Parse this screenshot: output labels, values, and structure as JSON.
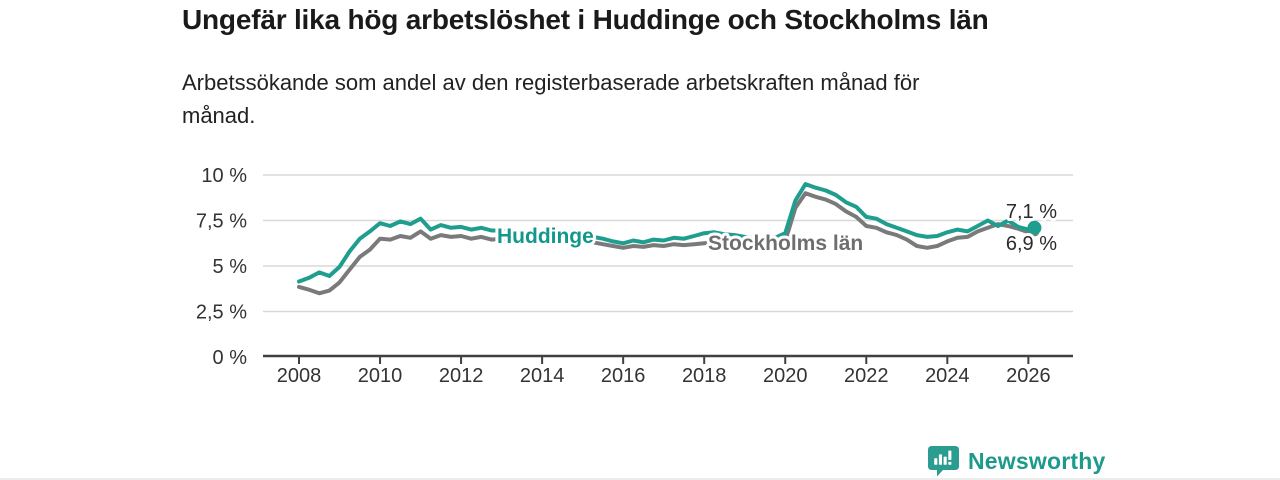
{
  "header": {
    "title": "Ungefär lika hög arbetslöshet i Huddinge och Stockholms län",
    "subtitle": "Arbetssökande som andel av den registerbaserade arbetskraften månad för månad."
  },
  "chart_data": {
    "type": "line",
    "unit": "%",
    "x_unit": "decimal_year",
    "xlim": [
      2008,
      2026.4
    ],
    "ylim": [
      0,
      10
    ],
    "grid": "horizontal",
    "legend": "inline-labels-on-lines",
    "yticks": [
      {
        "value": 0,
        "label": "0 %"
      },
      {
        "value": 2.5,
        "label": "2,5 %"
      },
      {
        "value": 5,
        "label": "5 %"
      },
      {
        "value": 7.5,
        "label": "7,5 %"
      },
      {
        "value": 10,
        "label": "10 %"
      }
    ],
    "xticks": [
      {
        "value": 2008,
        "label": "2008"
      },
      {
        "value": 2010,
        "label": "2010"
      },
      {
        "value": 2012,
        "label": "2012"
      },
      {
        "value": 2014,
        "label": "2014"
      },
      {
        "value": 2016,
        "label": "2016"
      },
      {
        "value": 2018,
        "label": "2018"
      },
      {
        "value": 2020,
        "label": "2020"
      },
      {
        "value": 2022,
        "label": "2022"
      },
      {
        "value": 2024,
        "label": "2024"
      },
      {
        "value": 2026,
        "label": "2026"
      }
    ],
    "x": [
      2008,
      2008.25,
      2008.5,
      2008.75,
      2009,
      2009.25,
      2009.5,
      2009.75,
      2010,
      2010.25,
      2010.5,
      2010.75,
      2011,
      2011.25,
      2011.5,
      2011.75,
      2012,
      2012.25,
      2012.5,
      2012.75,
      2013,
      2013.25,
      2013.5,
      2013.75,
      2014,
      2014.25,
      2014.5,
      2014.75,
      2015,
      2015.25,
      2015.5,
      2015.75,
      2016,
      2016.25,
      2016.5,
      2016.75,
      2017,
      2017.25,
      2017.5,
      2017.75,
      2018,
      2018.25,
      2018.5,
      2018.75,
      2019,
      2019.25,
      2019.5,
      2019.75,
      2020,
      2020.25,
      2020.5,
      2020.75,
      2021,
      2021.25,
      2021.5,
      2021.75,
      2022,
      2022.25,
      2022.5,
      2022.75,
      2023,
      2023.25,
      2023.5,
      2023.75,
      2024,
      2024.25,
      2024.5,
      2024.75,
      2025,
      2025.25,
      2025.5,
      2025.75,
      2026,
      2026.15
    ],
    "series": [
      {
        "name": "Huddinge",
        "color": "#1f9e8f",
        "label_color": "#12988a",
        "end_label": "7,1 %",
        "end_value": 7.1,
        "values": [
          4.15,
          4.35,
          4.65,
          4.45,
          4.95,
          5.8,
          6.5,
          6.9,
          7.35,
          7.2,
          7.45,
          7.3,
          7.6,
          7.0,
          7.25,
          7.1,
          7.15,
          7.0,
          7.1,
          6.95,
          6.95,
          6.85,
          6.9,
          6.8,
          6.75,
          6.8,
          6.7,
          6.65,
          6.7,
          6.6,
          6.5,
          6.35,
          6.25,
          6.4,
          6.3,
          6.45,
          6.4,
          6.55,
          6.5,
          6.65,
          6.8,
          6.85,
          6.75,
          6.7,
          6.6,
          6.5,
          6.45,
          6.55,
          6.8,
          8.6,
          9.5,
          9.3,
          9.15,
          8.9,
          8.5,
          8.25,
          7.7,
          7.6,
          7.3,
          7.1,
          6.9,
          6.7,
          6.6,
          6.65,
          6.85,
          7.0,
          6.9,
          7.2,
          7.5,
          7.2,
          7.5,
          7.15,
          7.0,
          7.1
        ]
      },
      {
        "name": "Stockholms län",
        "color": "#7a7a7a",
        "label_color": "#6e6e6e",
        "end_label": "6,9 %",
        "end_value": 6.9,
        "values": [
          3.85,
          3.7,
          3.5,
          3.65,
          4.1,
          4.8,
          5.5,
          5.9,
          6.5,
          6.45,
          6.65,
          6.55,
          6.9,
          6.5,
          6.7,
          6.6,
          6.65,
          6.5,
          6.6,
          6.45,
          6.5,
          6.4,
          6.45,
          6.35,
          6.3,
          6.35,
          6.3,
          6.25,
          6.35,
          6.3,
          6.2,
          6.1,
          6.0,
          6.1,
          6.05,
          6.15,
          6.1,
          6.2,
          6.15,
          6.2,
          6.25,
          6.3,
          6.2,
          6.15,
          6.1,
          6.05,
          6.0,
          6.1,
          6.35,
          8.2,
          9.0,
          8.8,
          8.65,
          8.4,
          8.0,
          7.7,
          7.2,
          7.1,
          6.85,
          6.7,
          6.45,
          6.1,
          6.0,
          6.1,
          6.35,
          6.55,
          6.6,
          6.9,
          7.1,
          7.3,
          7.2,
          7.05,
          6.85,
          6.9
        ]
      }
    ]
  },
  "footer": {
    "brand": "Newsworthy"
  },
  "colors": {
    "accent_teal": "#1f9e8f",
    "line_gray": "#7a7a7a",
    "title_text": "#1a1a1a",
    "axis_text": "#333333",
    "value_label_text": "#2b2b2b",
    "grid": "#d9d9d9",
    "axis": "#404040",
    "brand": "#1d9a8c"
  }
}
